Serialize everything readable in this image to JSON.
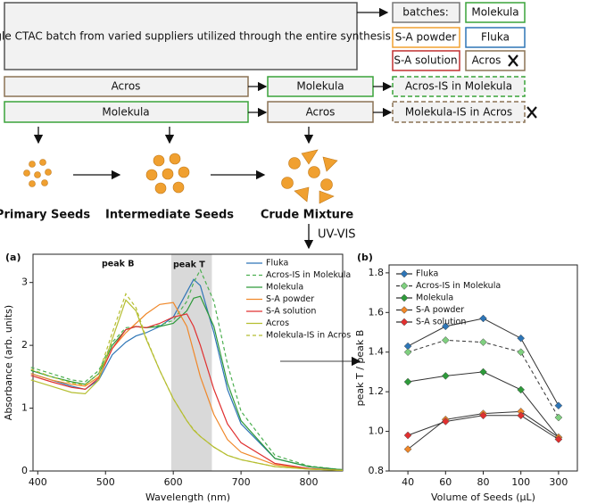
{
  "diagram": {
    "source": "a single CTAC batch from varied suppliers utilized through the entire synthesis",
    "batches_label": "batches:",
    "batches": [
      "Molekula",
      "S-A powder",
      "Fluka",
      "S-A solution",
      "Acros"
    ],
    "rows": [
      [
        "Acros",
        "Molekula",
        "Acros-IS in Molekula"
      ],
      [
        "Molekula",
        "Acros",
        "Molekula-IS in Acros"
      ]
    ],
    "stages": [
      "Primary Seeds",
      "Intermediate Seeds",
      "Crude Mixture"
    ],
    "method": "UV-VIS"
  },
  "chart_data": [
    {
      "type": "line",
      "panel": "(a)",
      "x_label": "Wavelength (nm)",
      "y_label": "Absorbance (arb. units)",
      "x": [
        390,
        420,
        450,
        470,
        490,
        510,
        530,
        545,
        560,
        580,
        600,
        620,
        630,
        640,
        660,
        680,
        700,
        750,
        800,
        850
      ],
      "xlim": [
        393,
        850
      ],
      "xticks": [
        400,
        500,
        600,
        700,
        800
      ],
      "ylim": [
        0,
        3.45
      ],
      "yticks": [
        0,
        1,
        2,
        3
      ],
      "shaded_band": [
        597,
        657
      ],
      "band_color": "#d9d9d9",
      "annotations": [
        "peak B",
        "peak T"
      ],
      "legend": "upper right",
      "series": [
        {
          "name": "Fluka",
          "color": "#2e75b6",
          "dashed": false,
          "values": [
            1.55,
            1.45,
            1.35,
            1.3,
            1.45,
            1.85,
            2.05,
            2.15,
            2.2,
            2.3,
            2.45,
            2.85,
            3.05,
            2.95,
            2.2,
            1.3,
            0.75,
            0.2,
            0.07,
            0.02
          ]
        },
        {
          "name": "Acros-IS in Molekula",
          "color": "#4caf50",
          "dashed": true,
          "values": [
            1.65,
            1.55,
            1.45,
            1.42,
            1.6,
            2.05,
            2.28,
            2.3,
            2.28,
            2.32,
            2.4,
            2.7,
            3.0,
            3.2,
            2.7,
            1.7,
            0.95,
            0.25,
            0.08,
            0.02
          ]
        },
        {
          "name": "Molekula",
          "color": "#2e9a3a",
          "dashed": false,
          "values": [
            1.6,
            1.5,
            1.42,
            1.38,
            1.55,
            2.0,
            2.25,
            2.3,
            2.28,
            2.3,
            2.35,
            2.55,
            2.75,
            2.78,
            2.3,
            1.4,
            0.8,
            0.2,
            0.07,
            0.02
          ]
        },
        {
          "name": "S-A powder",
          "color": "#f0882a",
          "dashed": false,
          "values": [
            1.55,
            1.45,
            1.38,
            1.35,
            1.5,
            1.95,
            2.2,
            2.35,
            2.5,
            2.65,
            2.68,
            2.3,
            1.9,
            1.5,
            0.9,
            0.5,
            0.3,
            0.1,
            0.03,
            0.01
          ]
        },
        {
          "name": "S-A solution",
          "color": "#e03030",
          "dashed": false,
          "values": [
            1.52,
            1.42,
            1.33,
            1.3,
            1.48,
            1.95,
            2.25,
            2.3,
            2.28,
            2.35,
            2.45,
            2.5,
            2.3,
            2.0,
            1.3,
            0.75,
            0.45,
            0.12,
            0.04,
            0.01
          ]
        },
        {
          "name": "Acros",
          "color": "#b5be30",
          "dashed": false,
          "values": [
            1.45,
            1.35,
            1.25,
            1.23,
            1.45,
            2.1,
            2.72,
            2.55,
            2.1,
            1.6,
            1.15,
            0.8,
            0.65,
            0.55,
            0.38,
            0.25,
            0.18,
            0.07,
            0.03,
            0.01
          ]
        },
        {
          "name": "Molekula-IS in Acros",
          "color": "#b5be30",
          "dashed": true,
          "values": [
            1.62,
            1.5,
            1.4,
            1.37,
            1.55,
            2.2,
            2.82,
            2.6,
            2.12,
            1.6,
            1.15,
            0.8,
            0.66,
            0.55,
            0.38,
            0.25,
            0.18,
            0.07,
            0.03,
            0.01
          ]
        }
      ]
    },
    {
      "type": "line",
      "panel": "(b)",
      "x_label": "Volume of Seeds (μL)",
      "y_label": "peak T / peak B",
      "categories": [
        "40",
        "60",
        "80",
        "100",
        "300"
      ],
      "ylim": [
        0.8,
        1.84
      ],
      "yticks": [
        0.8,
        {
          "value": 1.0,
          "label": "1.0"
        },
        1.2,
        1.4,
        1.6,
        1.8
      ],
      "markers": true,
      "line_color": "#333333",
      "legend": "upper left",
      "series": [
        {
          "name": "Fluka",
          "color": "#2e75b6",
          "dashed": false,
          "values": [
            1.43,
            1.53,
            1.57,
            1.47,
            1.13
          ]
        },
        {
          "name": "Acros-IS in Molekula",
          "color": "#7fcf7f",
          "dashed": true,
          "values": [
            1.4,
            1.46,
            1.45,
            1.4,
            1.07
          ]
        },
        {
          "name": "Molekula",
          "color": "#2e9a3a",
          "dashed": false,
          "values": [
            1.25,
            1.28,
            1.3,
            1.21,
            0.97
          ]
        },
        {
          "name": "S-A powder",
          "color": "#f0882a",
          "dashed": false,
          "values": [
            0.91,
            1.06,
            1.09,
            1.1,
            0.97
          ]
        },
        {
          "name": "S-A solution",
          "color": "#e03030",
          "dashed": false,
          "values": [
            0.98,
            1.05,
            1.08,
            1.08,
            0.96
          ]
        }
      ]
    }
  ]
}
